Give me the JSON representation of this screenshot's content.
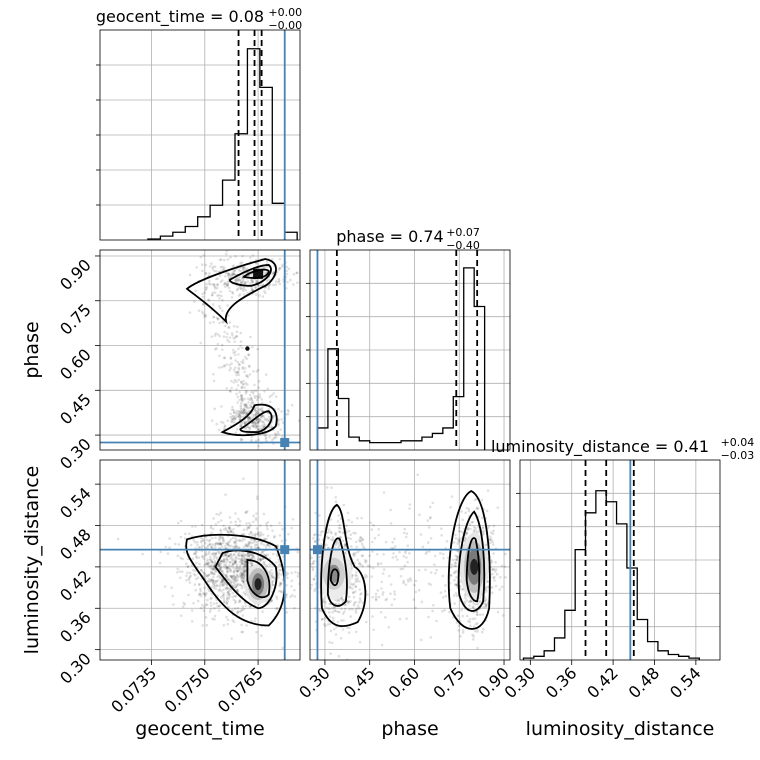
{
  "chart_data": {
    "type": "corner",
    "parameters": [
      "geocent_time",
      "phase",
      "luminosity_distance"
    ],
    "truths": {
      "geocent_time": 0.07725,
      "phase": 0.275,
      "luminosity_distance": 0.445
    },
    "axes_labels": {
      "geocent_time": "geocent_time",
      "phase": "phase",
      "luminosity_distance": "luminosity_distance"
    },
    "titles": {
      "geocent_time": {
        "text": "geocent_time = 0.08",
        "sup": "+0.00",
        "sub": "−0.00"
      },
      "phase": {
        "text": "phase = 0.74",
        "sup": "+0.07",
        "sub": "−0.40"
      },
      "luminosity_distance": {
        "text": "luminosity_distance = 0.41",
        "sup": "+0.04",
        "sub": "−0.03"
      }
    },
    "ranges": {
      "geocent_time": [
        0.07205,
        0.07768
      ],
      "phase": [
        0.25,
        0.92
      ],
      "luminosity_distance": [
        0.285,
        0.575
      ]
    },
    "ticks": {
      "geocent_time": {
        "values": [
          0.0735,
          0.075,
          0.0765
        ],
        "labels": [
          "0.0735",
          "0.0750",
          "0.0765"
        ]
      },
      "phase": {
        "values": [
          0.3,
          0.45,
          0.6,
          0.75,
          0.9
        ],
        "labels": [
          "0.30",
          "0.45",
          "0.60",
          "0.75",
          "0.90"
        ]
      },
      "luminosity_distance": {
        "values": [
          0.3,
          0.36,
          0.42,
          0.48,
          0.54
        ],
        "labels": [
          "0.30",
          "0.36",
          "0.42",
          "0.48",
          "0.54"
        ]
      }
    },
    "quantiles": {
      "geocent_time": [
        0.07595,
        0.0764,
        0.0766
      ],
      "phase": [
        0.34,
        0.74,
        0.81
      ],
      "luminosity_distance": [
        0.38,
        0.41,
        0.45
      ]
    },
    "histograms": {
      "geocent_time": {
        "edges": [
          0.0734,
          0.07375,
          0.0741,
          0.07445,
          0.0748,
          0.07515,
          0.0755,
          0.07585,
          0.0762,
          0.07655,
          0.0769,
          0.07725,
          0.0776
        ],
        "counts": [
          0.005,
          0.02,
          0.04,
          0.07,
          0.12,
          0.18,
          0.31,
          0.55,
          0.99,
          0.79,
          0.19,
          0.04
        ]
      },
      "phase": {
        "edges": [
          0.275,
          0.31,
          0.345,
          0.38,
          0.415,
          0.45,
          0.485,
          0.52,
          0.555,
          0.59,
          0.625,
          0.66,
          0.695,
          0.73,
          0.765,
          0.8,
          0.835
        ],
        "counts": [
          0.12,
          0.55,
          0.28,
          0.07,
          0.05,
          0.04,
          0.04,
          0.04,
          0.05,
          0.05,
          0.07,
          0.09,
          0.12,
          0.29,
          0.99,
          0.78
        ]
      },
      "luminosity_distance": {
        "edges": [
          0.29,
          0.305,
          0.32,
          0.335,
          0.35,
          0.365,
          0.38,
          0.395,
          0.41,
          0.425,
          0.44,
          0.455,
          0.47,
          0.485,
          0.5,
          0.515,
          0.53,
          0.545
        ],
        "counts": [
          0.01,
          0.02,
          0.05,
          0.12,
          0.27,
          0.6,
          0.8,
          0.92,
          0.86,
          0.74,
          0.5,
          0.22,
          0.1,
          0.05,
          0.03,
          0.02,
          0.01
        ]
      }
    },
    "grid": true,
    "truth_color": "#4682b4"
  }
}
